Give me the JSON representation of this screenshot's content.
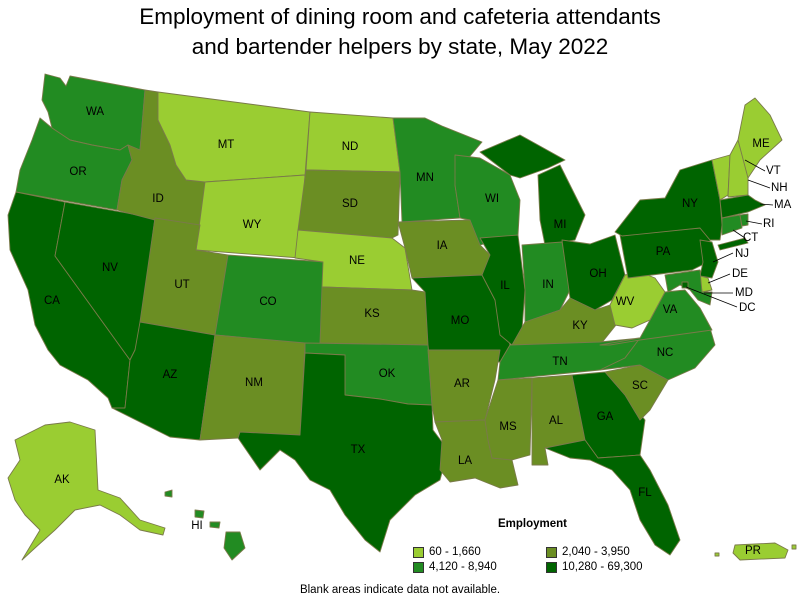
{
  "title": {
    "line1": "Employment of dining room and cafeteria attendants",
    "line2": "and bartender helpers by state, May 2022"
  },
  "legend": {
    "title": "Employment",
    "items": [
      {
        "range": "60 - 1,660",
        "color": "#9acd32"
      },
      {
        "range": "2,040 - 3,950",
        "color": "#6b8e23"
      },
      {
        "range": "4,120 - 8,940",
        "color": "#228b22"
      },
      {
        "range": "10,280 - 69,300",
        "color": "#006400"
      }
    ]
  },
  "footnote": "Blank areas indicate data not available.",
  "states": {
    "WA": 2,
    "OR": 2,
    "CA": 3,
    "NV": 3,
    "ID": 1,
    "MT": 0,
    "WY": 0,
    "UT": 1,
    "AZ": 3,
    "CO": 2,
    "NM": 1,
    "ND": 0,
    "SD": 1,
    "NE": 0,
    "KS": 1,
    "OK": 2,
    "TX": 3,
    "MN": 2,
    "IA": 1,
    "MO": 3,
    "AR": 1,
    "LA": 1,
    "WI": 2,
    "IL": 3,
    "MI": 3,
    "IN": 2,
    "OH": 3,
    "KY": 1,
    "TN": 2,
    "MS": 1,
    "AL": 1,
    "GA": 3,
    "FL": 3,
    "SC": 1,
    "NC": 2,
    "VA": 2,
    "WV": 0,
    "PA": 3,
    "NY": 3,
    "NJ": 3,
    "DE": 0,
    "MD": 2,
    "DC": 3,
    "CT": 2,
    "RI": 2,
    "MA": 3,
    "VT": 0,
    "NH": 0,
    "ME": 0,
    "AK": 0,
    "HI": 2,
    "PR": 0
  }
}
